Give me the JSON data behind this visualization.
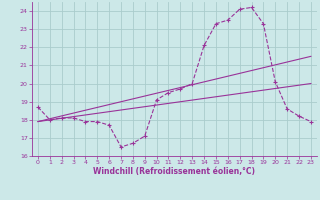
{
  "xlabel": "Windchill (Refroidissement éolien,°C)",
  "bg_color": "#cce8e8",
  "grid_color": "#aacccc",
  "line_color": "#993399",
  "xlim": [
    -0.5,
    23.5
  ],
  "ylim": [
    16,
    24.5
  ],
  "yticks": [
    16,
    17,
    18,
    19,
    20,
    21,
    22,
    23,
    24
  ],
  "xticks": [
    0,
    1,
    2,
    3,
    4,
    5,
    6,
    7,
    8,
    9,
    10,
    11,
    12,
    13,
    14,
    15,
    16,
    17,
    18,
    19,
    20,
    21,
    22,
    23
  ],
  "curve_x": [
    0,
    1,
    2,
    3,
    4,
    5,
    6,
    7,
    8,
    9,
    10,
    11,
    12,
    13,
    14,
    15,
    16,
    17,
    18,
    19,
    20,
    21,
    22,
    23
  ],
  "curve_y": [
    18.7,
    18.0,
    18.1,
    18.1,
    17.9,
    17.9,
    17.7,
    16.5,
    16.7,
    17.1,
    19.1,
    19.5,
    19.7,
    20.0,
    22.1,
    23.3,
    23.5,
    24.1,
    24.2,
    23.3,
    20.1,
    18.6,
    18.2,
    17.9
  ],
  "line1_x": [
    0,
    23
  ],
  "line1_y": [
    17.9,
    21.5
  ],
  "line2_x": [
    0,
    23
  ],
  "line2_y": [
    17.9,
    20.0
  ]
}
